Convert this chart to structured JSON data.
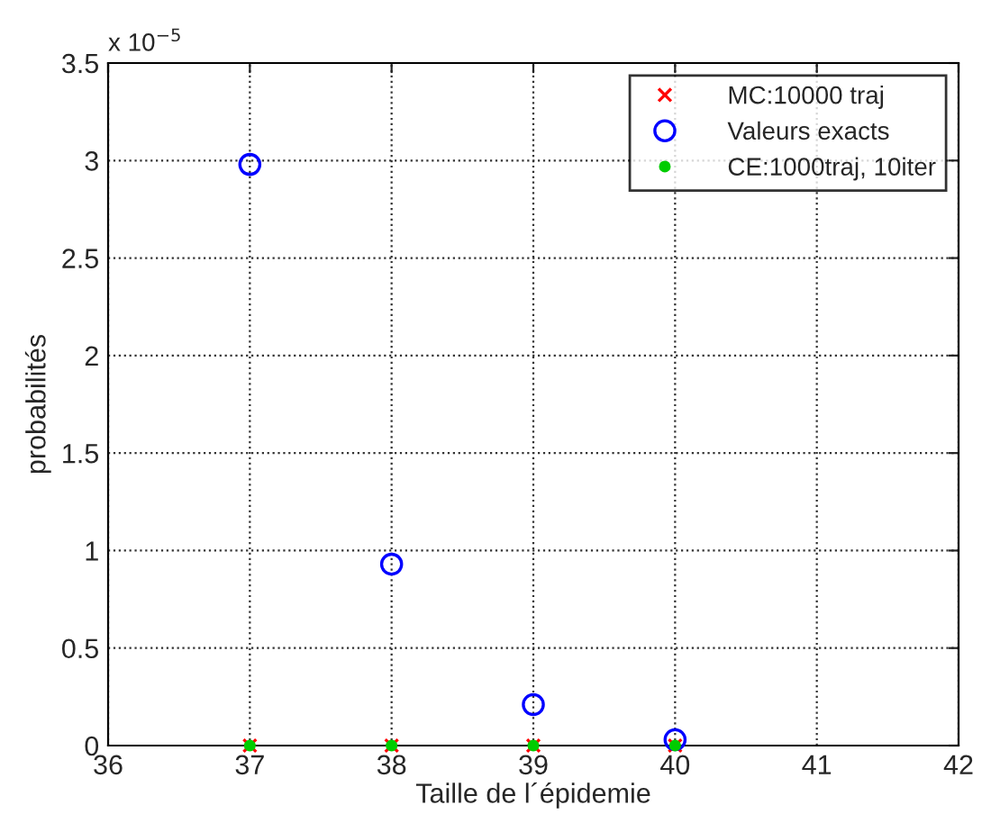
{
  "chart_data": {
    "type": "scatter",
    "xlabel": "Taille de l´épidemie",
    "ylabel": "probabilités",
    "x": [
      37,
      38,
      39,
      40
    ],
    "series": [
      {
        "name": "MC:10000 traj",
        "color": "#ff0000",
        "marker": "cross",
        "values": [
          0,
          0,
          0,
          0
        ]
      },
      {
        "name": "Valeurs exacts",
        "color": "#0000ff",
        "marker": "circle",
        "values": [
          2.98,
          0.93,
          0.21,
          0.03
        ]
      },
      {
        "name": "CE:1000traj, 10iter",
        "color": "#00cc00",
        "marker": "point",
        "values": [
          0,
          0,
          0,
          0
        ]
      }
    ],
    "annotations": [
      "x 10$^{−5}$"
    ],
    "xlim": [
      36,
      42
    ],
    "xticks": [
      36,
      37,
      38,
      39,
      40,
      41,
      42
    ],
    "ylim": [
      0,
      3.5
    ],
    "yticks": [
      0,
      0.5,
      1,
      1.5,
      2,
      2.5,
      3,
      3.5
    ],
    "grid": true,
    "legend": "top right",
    "line_style": "dotted"
  }
}
